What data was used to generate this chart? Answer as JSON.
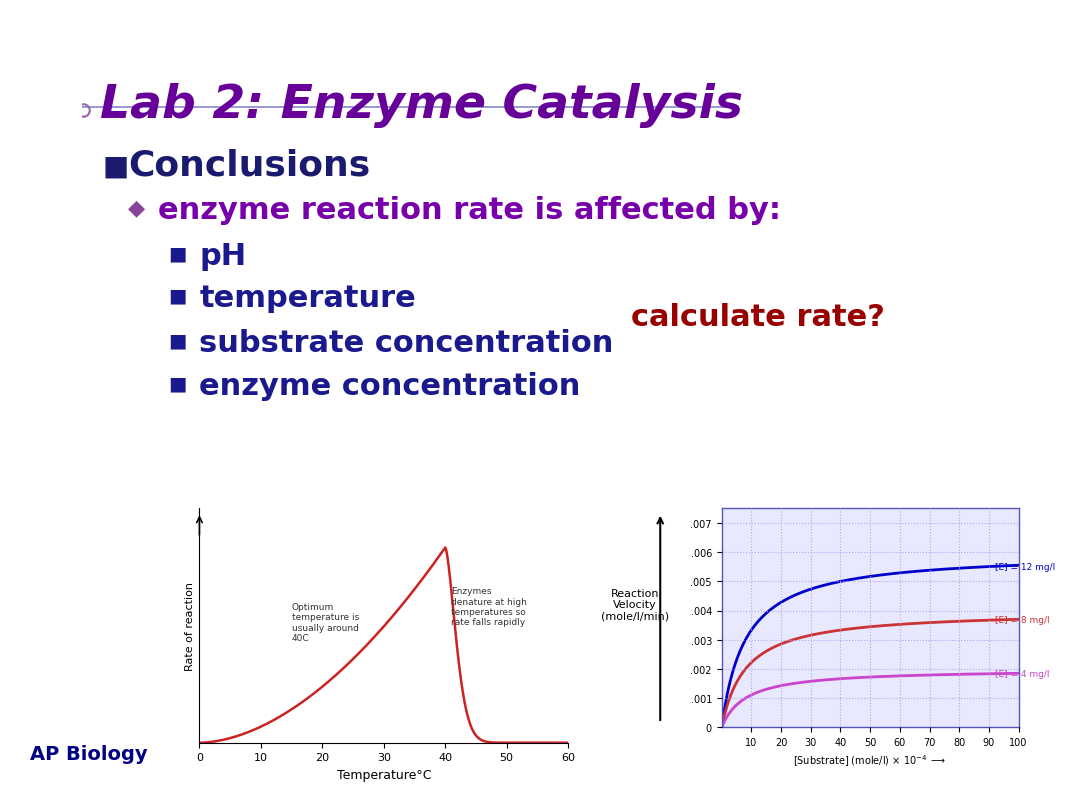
{
  "title": "Lab 2: Enzyme Catalysis",
  "title_color": "#660099",
  "header_bar_dark": "#0d0d5c",
  "header_bar_light": "#4444aa",
  "slide_bg": "#ffffff",
  "left_border_color": "#8888cc",
  "bullet1": "Conclusions",
  "bullet2": "enzyme reaction rate is affected by:",
  "sub_bullets": [
    "pH",
    "temperature",
    "substrate concentration",
    "enzyme concentration"
  ],
  "bullet1_color": "#1a1a6e",
  "bullet2_color": "#7700aa",
  "sub_bullet_color": "#1a1a8e",
  "footer_text": "AP Biology",
  "footer_color": "#000080",
  "calc_rate_text": "calculate rate?",
  "calc_rate_color": "#990000",
  "left_chart": {
    "xlabel": "Temperature°C",
    "ylabel": "Rate of reaction",
    "xticks": [
      0,
      10,
      20,
      30,
      40,
      50,
      60
    ],
    "annotation1": "Optimum\ntemperature is\nusually around\n40C",
    "annotation2": "Enzymes\ndenature at high\ntemperatures so\nrate falls rapidly",
    "curve_color": "#cc2222"
  },
  "right_chart": {
    "arrow_label": "Reaction\nVelocity\n(mole/l/min)",
    "xlabel": "[Substrate] (mole/l) × 10",
    "xticks": [
      10,
      20,
      30,
      40,
      50,
      60,
      70,
      80,
      90,
      100
    ],
    "yticks": [
      0,
      0.001,
      0.002,
      0.003,
      0.004,
      0.005,
      0.006,
      0.007
    ],
    "ylabels": [
      "0",
      ".001",
      ".002",
      ".003",
      ".004",
      ".005",
      ".006",
      ".007"
    ],
    "curves": [
      {
        "label": "[E] = 12 mg/l",
        "vmax": 0.006,
        "km": 8,
        "color": "#0000cc"
      },
      {
        "label": "[E] = 8 mg/l",
        "vmax": 0.004,
        "km": 8,
        "color": "#cc3333"
      },
      {
        "label": "[E] = 4 mg/l",
        "vmax": 0.002,
        "km": 8,
        "color": "#cc44cc"
      }
    ],
    "grid_color": "#aaaaee",
    "bg_color": "#e8e8ff"
  }
}
